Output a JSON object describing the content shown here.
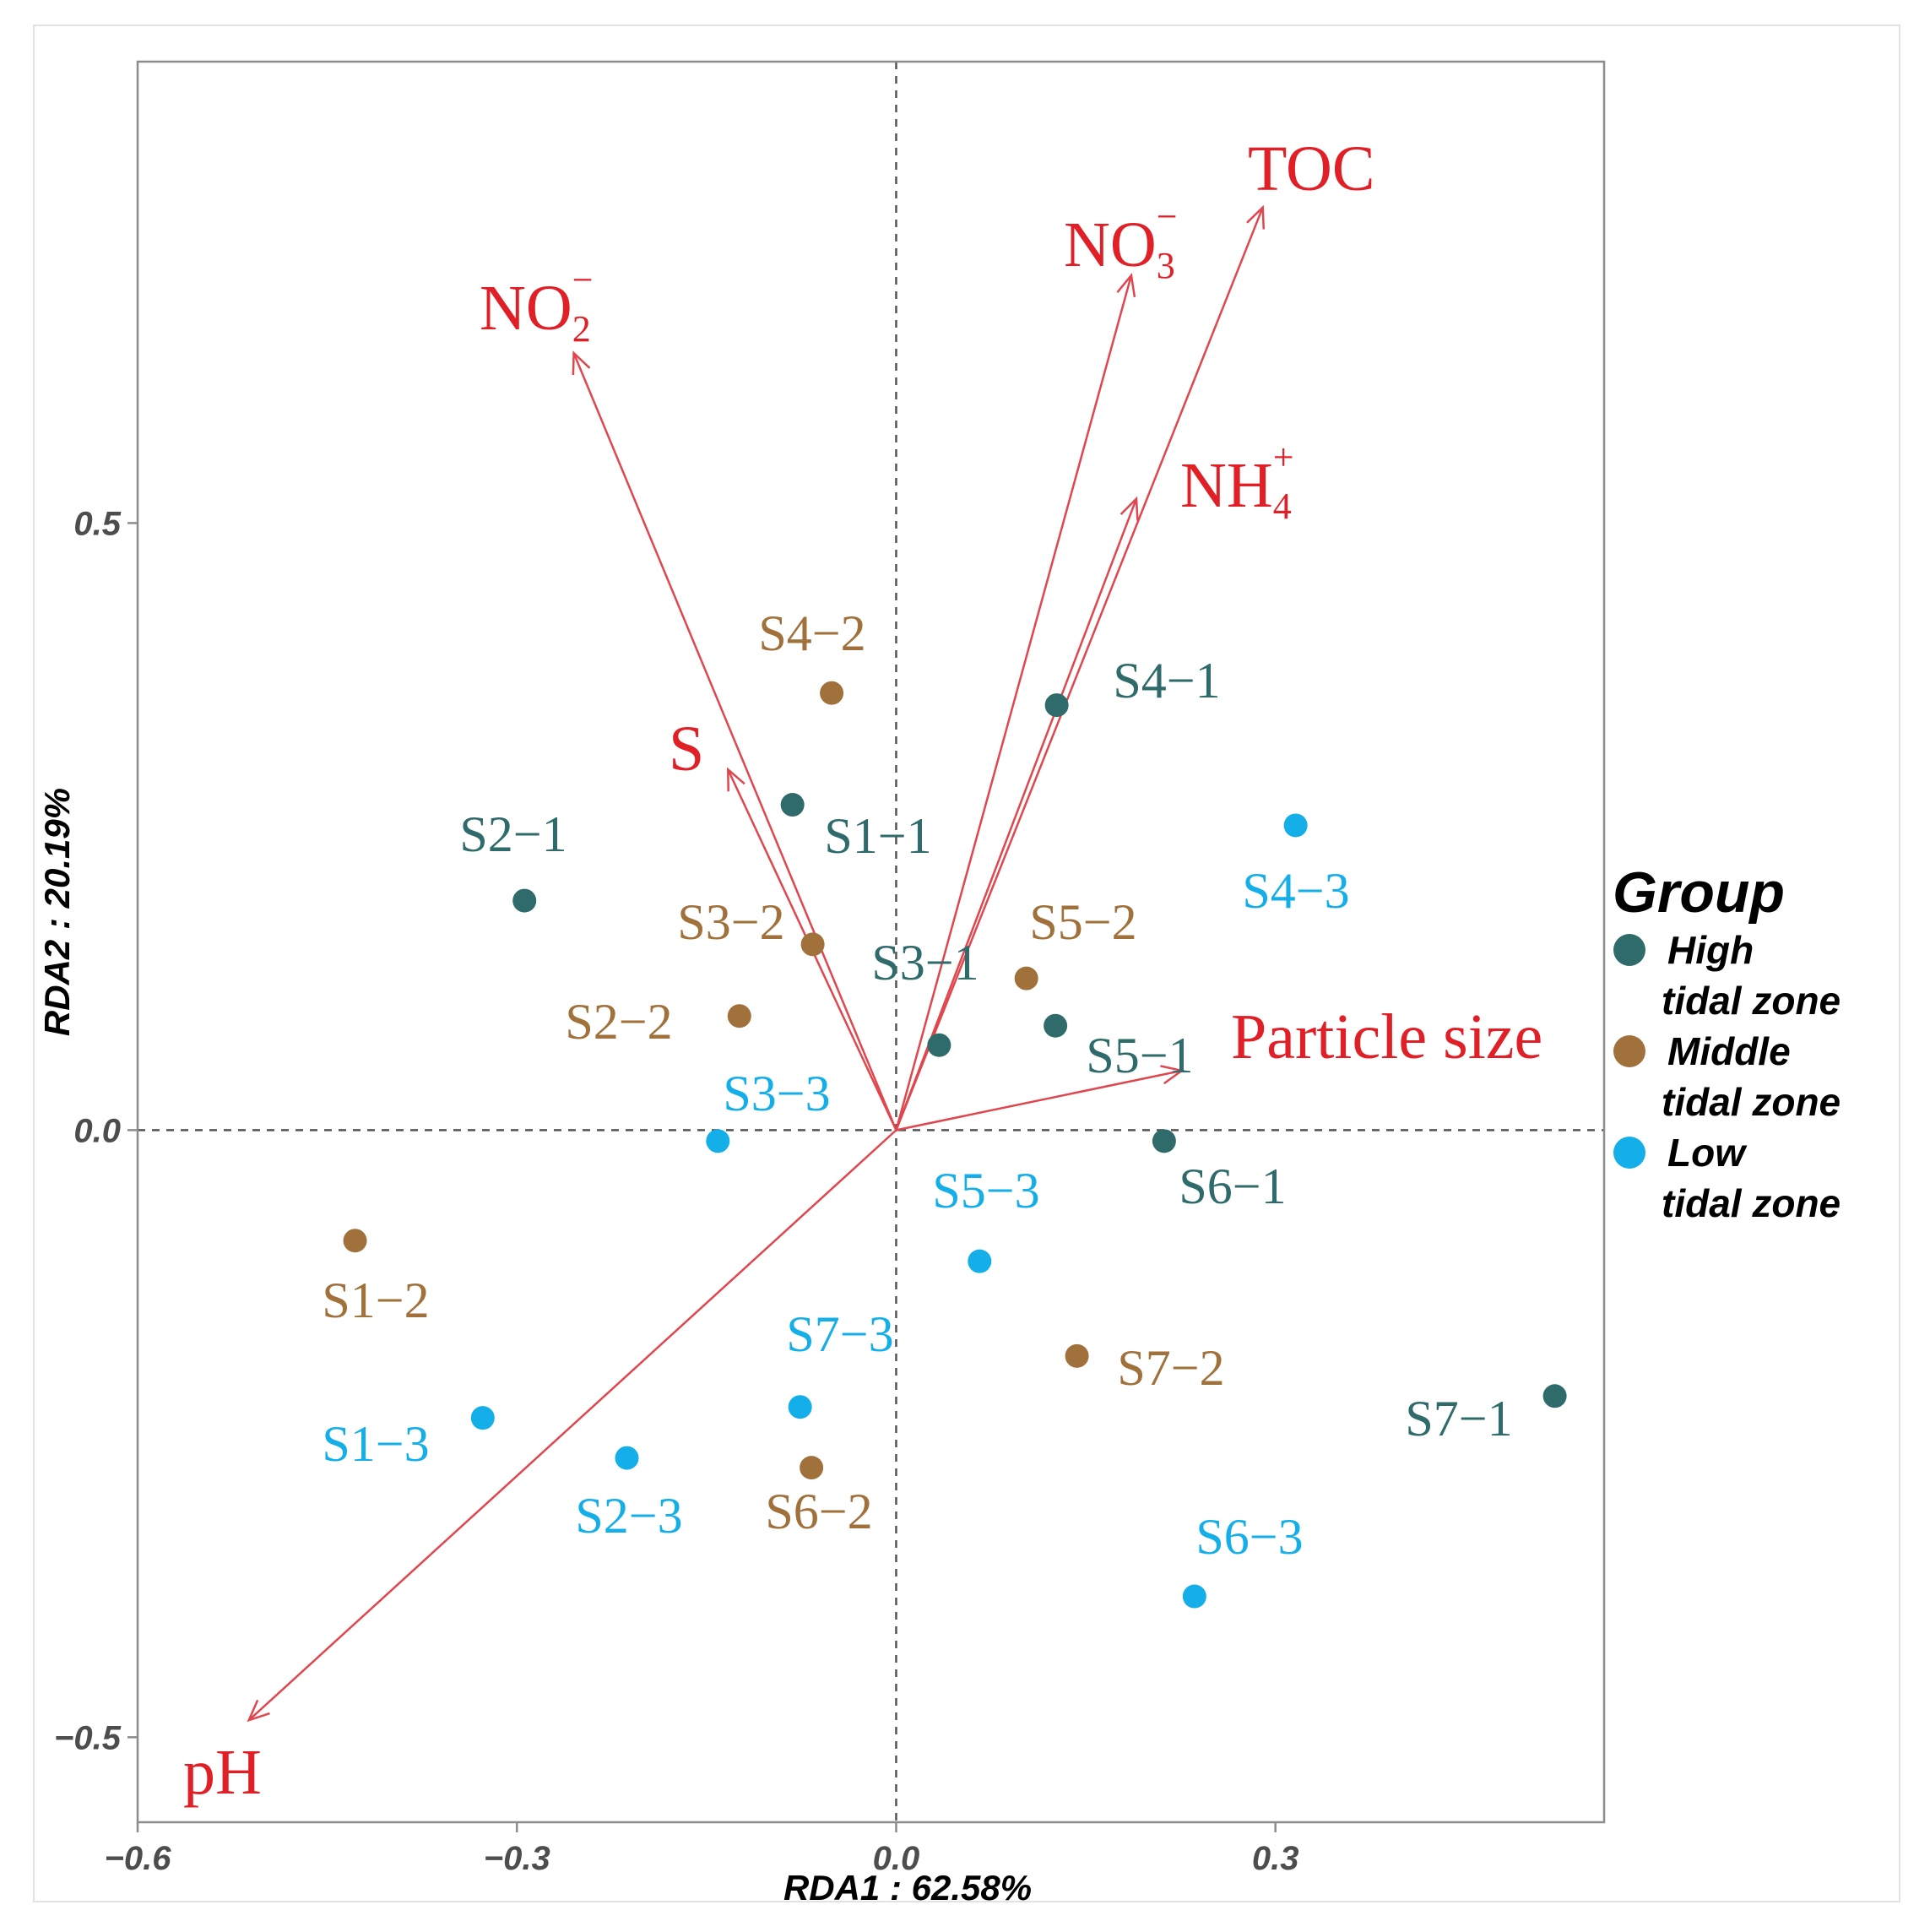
{
  "colors": {
    "high": "#2f6b6b",
    "middle": "#a0713b",
    "low": "#14aee9",
    "arrow": "#e0464d",
    "env_text": "#e01f26"
  },
  "chart_data": {
    "type": "scatter",
    "subtype": "RDA biplot",
    "xlabel": "RDA1 : 62.58%",
    "ylabel": "RDA2 : 20.19%",
    "xlim": [
      -0.6,
      0.56
    ],
    "ylim": [
      -0.57,
      0.88
    ],
    "x_ticks": [
      {
        "value": -0.6,
        "label": "−0.6"
      },
      {
        "value": -0.3,
        "label": "−0.3"
      },
      {
        "value": 0.0,
        "label": "0.0"
      },
      {
        "value": 0.3,
        "label": "0.3"
      }
    ],
    "y_ticks": [
      {
        "value": 0.5,
        "label": "0.5"
      },
      {
        "value": 0.0,
        "label": "0.0"
      },
      {
        "value": -0.5,
        "label": "−0.5"
      }
    ],
    "grid": false,
    "reference_lines": "dashed lines at x=0 and y=0",
    "legend": {
      "title": "Group",
      "position": "right",
      "entries": [
        {
          "key": "high",
          "line1": "High",
          "line2": "tidal zone"
        },
        {
          "key": "middle",
          "line1": "Middle",
          "line2": "tidal zone"
        },
        {
          "key": "low",
          "line1": "Low",
          "line2": "tidal zone"
        }
      ]
    },
    "points": [
      {
        "label": "S1−1",
        "group": "high",
        "x": -0.082,
        "y": 0.268
      },
      {
        "label": "S2−1",
        "group": "high",
        "x": -0.294,
        "y": 0.189
      },
      {
        "label": "S3−1",
        "group": "high",
        "x": 0.034,
        "y": 0.07
      },
      {
        "label": "S4−1",
        "group": "high",
        "x": 0.127,
        "y": 0.35
      },
      {
        "label": "S5−1",
        "group": "high",
        "x": 0.126,
        "y": 0.086
      },
      {
        "label": "S6−1",
        "group": "high",
        "x": 0.212,
        "y": -0.009
      },
      {
        "label": "S7−1",
        "group": "high",
        "x": 0.521,
        "y": -0.219
      },
      {
        "label": "S1−2",
        "group": "middle",
        "x": -0.428,
        "y": -0.091
      },
      {
        "label": "S2−2",
        "group": "middle",
        "x": -0.124,
        "y": 0.094
      },
      {
        "label": "S3−2",
        "group": "middle",
        "x": -0.066,
        "y": 0.153
      },
      {
        "label": "S4−2",
        "group": "middle",
        "x": -0.051,
        "y": 0.36
      },
      {
        "label": "S5−2",
        "group": "middle",
        "x": 0.103,
        "y": 0.125
      },
      {
        "label": "S6−2",
        "group": "middle",
        "x": -0.067,
        "y": -0.278
      },
      {
        "label": "S7−2",
        "group": "middle",
        "x": 0.143,
        "y": -0.186
      },
      {
        "label": "S1−3",
        "group": "low",
        "x": -0.327,
        "y": -0.237
      },
      {
        "label": "S2−3",
        "group": "low",
        "x": -0.213,
        "y": -0.27
      },
      {
        "label": "S3−3",
        "group": "low",
        "x": -0.141,
        "y": -0.009
      },
      {
        "label": "S4−3",
        "group": "low",
        "x": 0.316,
        "y": 0.251
      },
      {
        "label": "S5−3",
        "group": "low",
        "x": 0.066,
        "y": -0.108
      },
      {
        "label": "S6−3",
        "group": "low",
        "x": 0.236,
        "y": -0.384
      },
      {
        "label": "S7−3",
        "group": "low",
        "x": -0.076,
        "y": -0.228
      }
    ],
    "vectors": [
      {
        "name": "TOC",
        "base": "TOC",
        "sub": "",
        "sup": "",
        "x": 0.29,
        "y": 0.76
      },
      {
        "name": "NO3−",
        "base": "NO",
        "sub": "3",
        "sup": "−",
        "x": 0.186,
        "y": 0.704
      },
      {
        "name": "NO2−",
        "base": "NO",
        "sub": "2",
        "sup": "−",
        "x": -0.255,
        "y": 0.64
      },
      {
        "name": "NH4+",
        "base": "NH",
        "sub": "4",
        "sup": "+",
        "x": 0.19,
        "y": 0.52
      },
      {
        "name": "S",
        "base": "S",
        "sub": "",
        "sup": "",
        "x": -0.133,
        "y": 0.297
      },
      {
        "name": "Particle size",
        "base": "Particle size",
        "sub": "",
        "sup": "",
        "x": 0.226,
        "y": 0.049
      },
      {
        "name": "pH",
        "base": "pH",
        "sub": "",
        "sup": "",
        "x": -0.512,
        "y": -0.486
      }
    ]
  }
}
